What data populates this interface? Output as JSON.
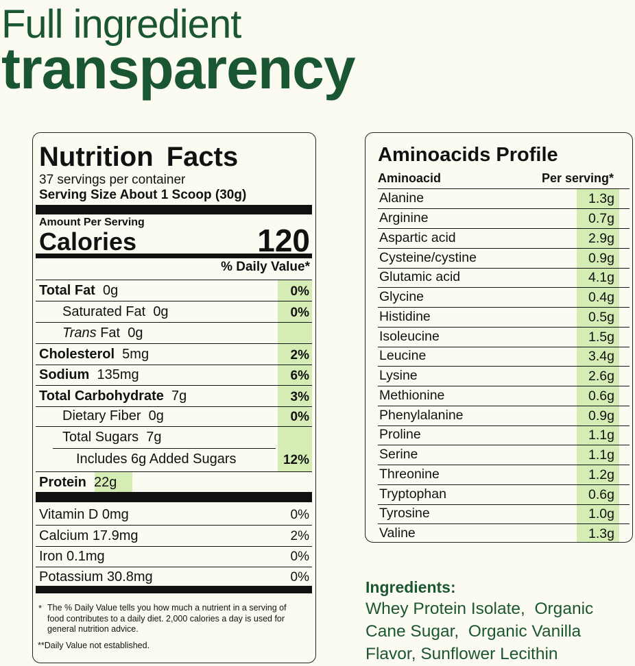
{
  "header": {
    "line1": "Full ingredient",
    "line2": "transparency"
  },
  "nutrition": {
    "title": "Nutrition Facts",
    "servings": "37 servings per container",
    "serving_size": "Serving Size About 1 Scoop (30g)",
    "amount_per_serving": "Amount Per Serving",
    "calories_label": "Calories",
    "calories": "120",
    "dv_header": "% Daily Value*",
    "rows": [
      {
        "name": "Total Fat",
        "amount": "0g",
        "dv": "0%"
      },
      {
        "name": "Saturated Fat",
        "amount": "0g",
        "dv": "0%"
      },
      {
        "name_italic": "Trans",
        "name": "Fat",
        "amount": "0g"
      },
      {
        "name": "Cholesterol",
        "amount": "5mg",
        "dv": "2%"
      },
      {
        "name": "Sodium",
        "amount": "135mg",
        "dv": "6%"
      },
      {
        "name": "Total Carbohydrate",
        "amount": "7g",
        "dv": "3%"
      },
      {
        "name": "Dietary Fiber",
        "amount": "0g",
        "dv": "0%"
      },
      {
        "name": "Total Sugars",
        "amount": "7g"
      },
      {
        "name": "Includes 6g Added Sugars",
        "dv": "12%"
      },
      {
        "name": "Protein",
        "amount": "22g"
      }
    ],
    "vitamins": [
      {
        "name": "Vitamin D",
        "amount": "0mg",
        "dv": "0%"
      },
      {
        "name": "Calcium",
        "amount": "17.9mg",
        "dv": "2%"
      },
      {
        "name": "Iron",
        "amount": "0.1mg",
        "dv": "0%"
      },
      {
        "name": "Potassium",
        "amount": "30.8mg",
        "dv": "0%"
      }
    ],
    "footnote_marker": "*",
    "footnote": "The % Daily Value tells you how much a nutrient in a serving of food contributes to a daily diet. 2,000 calories a day is used for general nutrition advice.",
    "footnote2": "**Daily Value not established."
  },
  "amino": {
    "title": "Aminoacids Profile",
    "col1": "Aminoacid",
    "col2": "Per serving*",
    "rows": [
      [
        "Alanine",
        "1.3g"
      ],
      [
        "Arginine",
        "0.7g"
      ],
      [
        "Aspartic acid",
        "2.9g"
      ],
      [
        "Cysteine/cystine",
        "0.9g"
      ],
      [
        "Glutamic acid",
        "4.1g"
      ],
      [
        "Glycine",
        "0.4g"
      ],
      [
        "Histidine",
        "0.5g"
      ],
      [
        "Isoleucine",
        "1.5g"
      ],
      [
        "Leucine",
        "3.4g"
      ],
      [
        "Lysine",
        "2.6g"
      ],
      [
        "Methionine",
        "0.6g"
      ],
      [
        "Phenylalanine",
        "0.9g"
      ],
      [
        "Proline",
        "1.1g"
      ],
      [
        "Serine",
        "1.1g"
      ],
      [
        "Threonine",
        "1.2g"
      ],
      [
        "Tryptophan",
        "0.6g"
      ],
      [
        "Tyrosine",
        "1.0g"
      ],
      [
        "Valine",
        "1.3g"
      ]
    ]
  },
  "ingredients": {
    "title": "Ingredients:",
    "lines": [
      "Whey Protein Isolate,  Organic",
      "Cane Sugar,  Organic Vanilla",
      "Flavor, Sunflower Lecithin"
    ]
  }
}
